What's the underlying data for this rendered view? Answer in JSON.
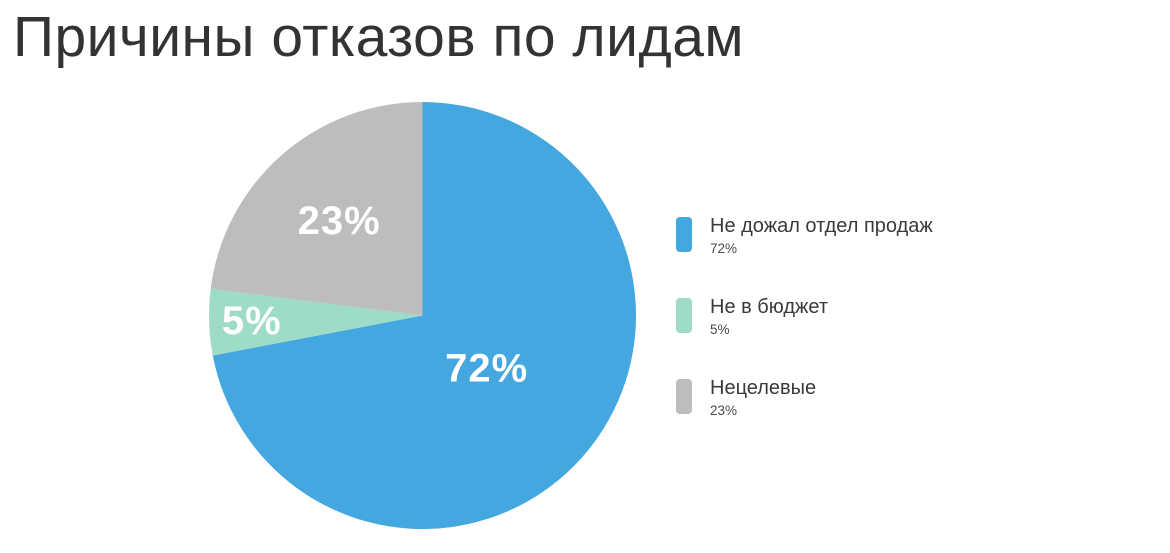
{
  "page": {
    "title": "Причины отказов по лидам"
  },
  "chart_data": {
    "type": "pie",
    "title": "Причины отказов по лидам",
    "start_angle": "12-oclock",
    "direction": "clockwise",
    "legend_position": "right",
    "labels_on_slices": true,
    "slices": [
      {
        "label": "Не дожал отдел продаж",
        "value": 72,
        "pct_text": "72%",
        "color": "#45A7E0",
        "label_radius": 0.39
      },
      {
        "label": "Не в бюджет",
        "value": 5,
        "pct_text": "5%",
        "color": "#9EDCC8",
        "label_radius": 0.8
      },
      {
        "label": "Нецелевые",
        "value": 23,
        "pct_text": "23%",
        "color": "#BDBDBD",
        "label_radius": 0.59
      }
    ],
    "colors": {
      "background": "#FFFFFF",
      "title_text": "#333333",
      "slice_label_text": "#FFFFFF",
      "legend_label_text": "#3A3A3A",
      "legend_value_text": "#4A4A4A"
    }
  }
}
